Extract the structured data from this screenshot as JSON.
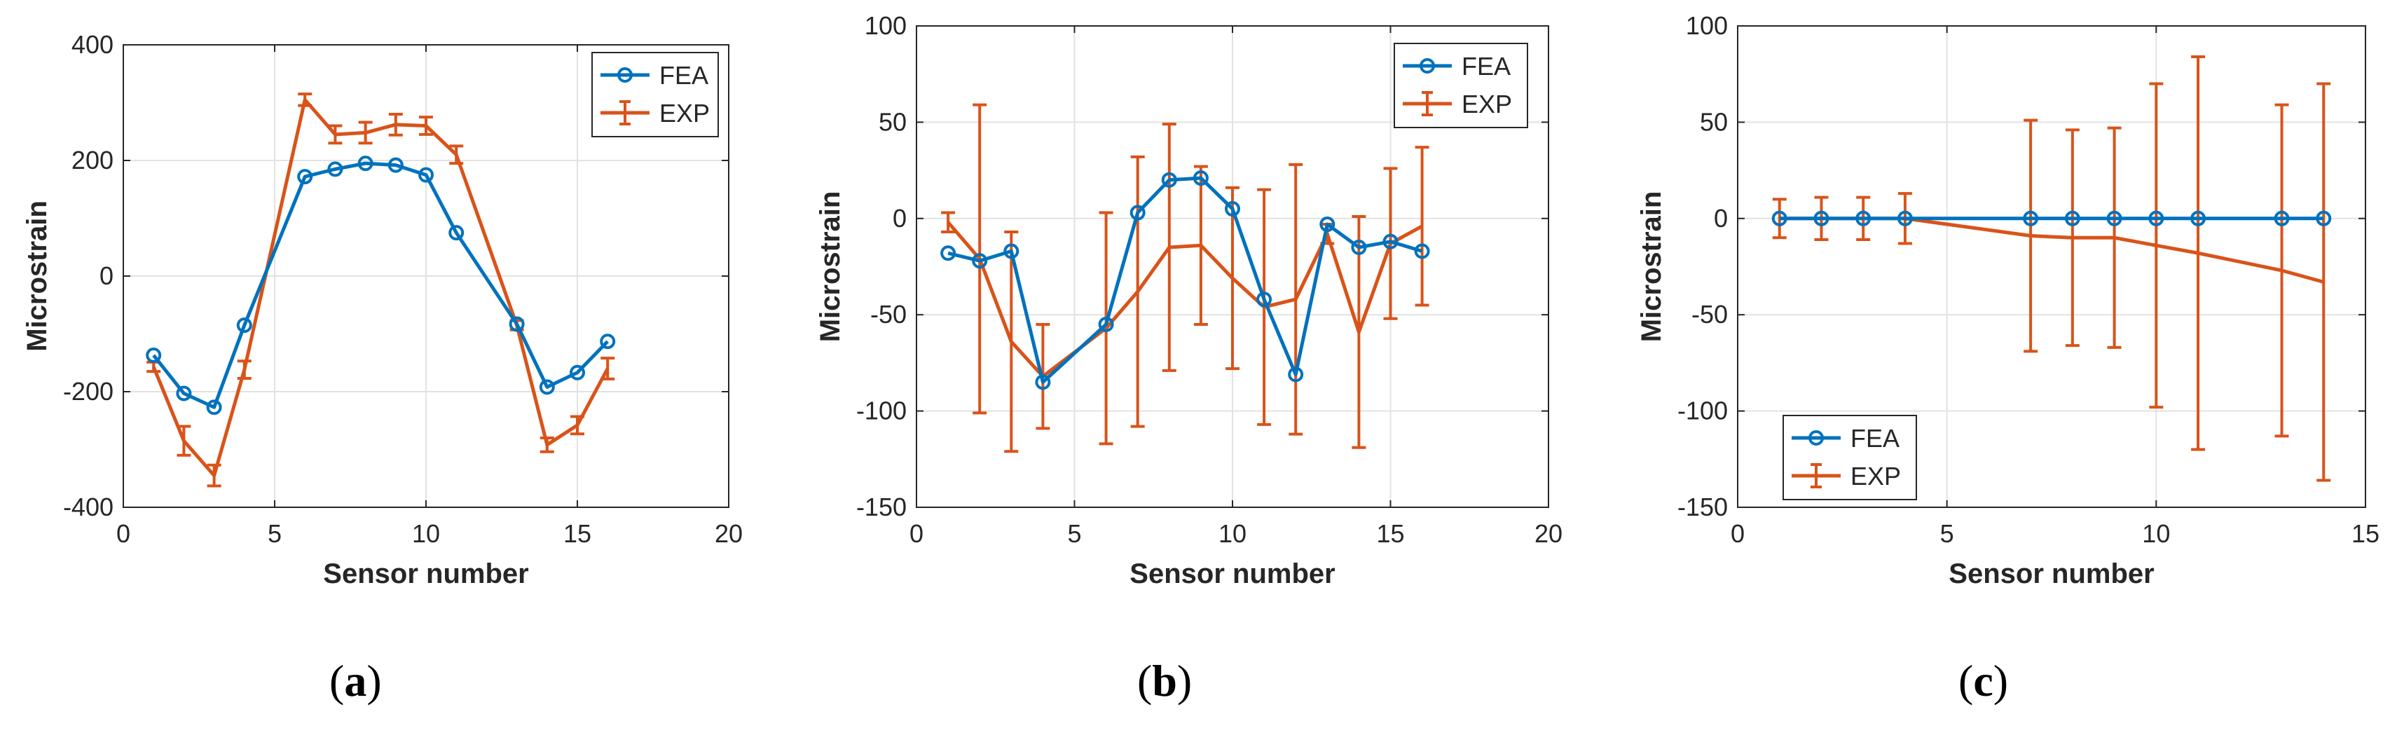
{
  "chart_data": [
    {
      "type": "line",
      "panel_label": "a",
      "xlabel": "Sensor number",
      "ylabel": "Microstrain",
      "xlim": [
        0,
        20
      ],
      "ylim": [
        -400,
        400
      ],
      "xticks": [
        0,
        5,
        10,
        15,
        20
      ],
      "yticks": [
        -400,
        -200,
        0,
        200,
        400
      ],
      "grid": true,
      "legend_position": "top-right",
      "series": [
        {
          "name": "FEA",
          "color": "#0072BD",
          "marker": "circle",
          "x": [
            1,
            2,
            3,
            4,
            6,
            7,
            8,
            9,
            10,
            11,
            13,
            14,
            15,
            16
          ],
          "y": [
            -137,
            -203,
            -227,
            -85,
            172,
            185,
            195,
            192,
            175,
            75,
            -83,
            -192,
            -167,
            -113
          ]
        },
        {
          "name": "EXP",
          "color": "#D95319",
          "errorbars": true,
          "x": [
            1,
            2,
            3,
            4,
            6,
            7,
            8,
            9,
            10,
            11,
            13,
            14,
            15,
            16
          ],
          "y": [
            -157,
            -285,
            -345,
            -162,
            305,
            245,
            248,
            262,
            260,
            210,
            -85,
            -292,
            -258,
            -160
          ],
          "err": [
            8,
            25,
            18,
            15,
            10,
            15,
            18,
            18,
            15,
            15,
            8,
            12,
            15,
            18
          ]
        }
      ]
    },
    {
      "type": "line",
      "panel_label": "b",
      "xlabel": "Sensor number",
      "ylabel": "Microstrain",
      "xlim": [
        0,
        20
      ],
      "ylim": [
        -150,
        100
      ],
      "xticks": [
        0,
        5,
        10,
        15,
        20
      ],
      "yticks": [
        -150,
        -100,
        -50,
        0,
        50,
        100
      ],
      "grid": true,
      "legend_position": "top-right",
      "series": [
        {
          "name": "FEA",
          "color": "#0072BD",
          "marker": "circle",
          "x": [
            1,
            2,
            3,
            4,
            6,
            7,
            8,
            9,
            10,
            11,
            12,
            13,
            14,
            15,
            16
          ],
          "y": [
            -18,
            -22,
            -17,
            -85,
            -55,
            3,
            20,
            21,
            5,
            -42,
            -81,
            -3,
            -15,
            -12,
            -17
          ]
        },
        {
          "name": "EXP",
          "color": "#D95319",
          "errorbars": true,
          "x": [
            1,
            2,
            3,
            4,
            6,
            7,
            8,
            9,
            10,
            11,
            12,
            13,
            14,
            15,
            16
          ],
          "y": [
            -2,
            -21,
            -64,
            -82,
            -57,
            -38,
            -15,
            -14,
            -31,
            -46,
            -42,
            -8,
            -59,
            -13,
            -4
          ],
          "err": [
            5,
            80,
            57,
            27,
            60,
            70,
            64,
            41,
            47,
            61,
            70,
            5,
            60,
            39,
            41
          ]
        }
      ]
    },
    {
      "type": "line",
      "panel_label": "c",
      "xlabel": "Sensor number",
      "ylabel": "Microstrain",
      "xlim": [
        0,
        15
      ],
      "ylim": [
        -150,
        100
      ],
      "xticks": [
        0,
        5,
        10,
        15
      ],
      "yticks": [
        -150,
        -100,
        -50,
        0,
        50,
        100
      ],
      "grid": true,
      "legend_position": "bottom-left",
      "series": [
        {
          "name": "FEA",
          "color": "#0072BD",
          "marker": "circle",
          "x": [
            1,
            2,
            3,
            4,
            7,
            8,
            9,
            10,
            11,
            13,
            14
          ],
          "y": [
            0,
            0,
            0,
            0,
            0,
            0,
            0,
            0,
            0,
            0,
            0
          ]
        },
        {
          "name": "EXP",
          "color": "#D95319",
          "errorbars": true,
          "x": [
            1,
            2,
            3,
            4,
            7,
            8,
            9,
            10,
            11,
            13,
            14
          ],
          "y": [
            0,
            0,
            0,
            0,
            -9,
            -10,
            -10,
            -14,
            -18,
            -27,
            -33
          ],
          "err": [
            10,
            11,
            11,
            13,
            60,
            56,
            57,
            84,
            102,
            86,
            103
          ]
        }
      ]
    }
  ]
}
